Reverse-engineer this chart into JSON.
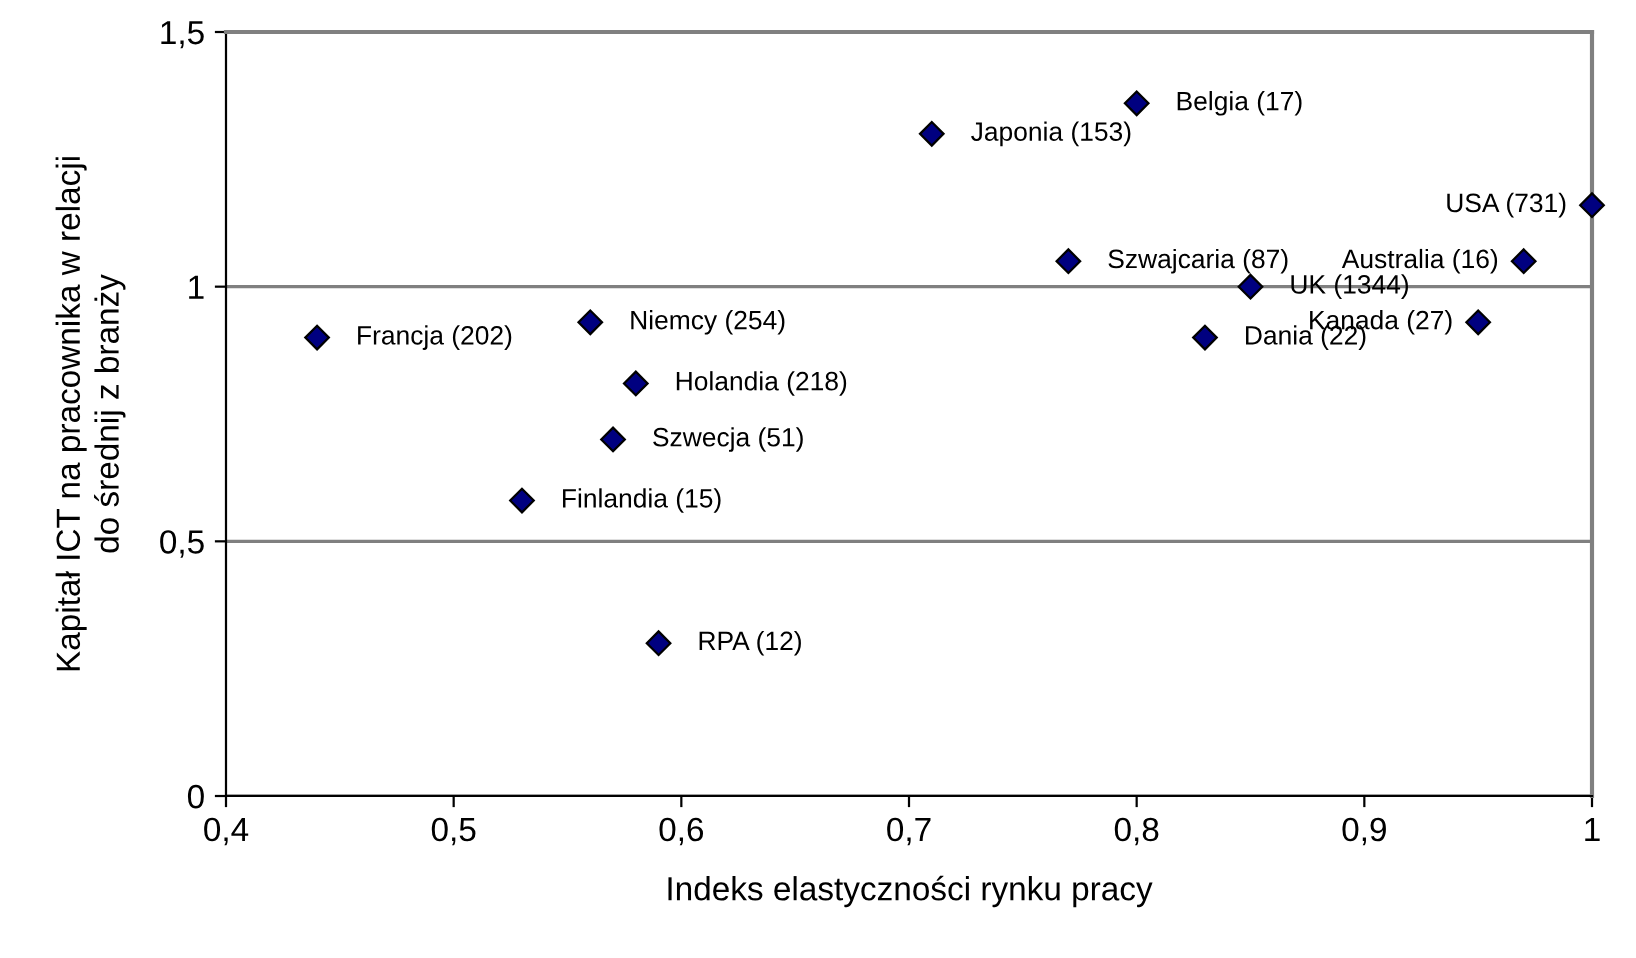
{
  "chart_data": {
    "type": "scatter",
    "xlabel": "Indeks elastyczności rynku pracy",
    "ylabel": "Kapitał ICT na pracownika w relacji\ndo średnij z branży",
    "x": [
      0.8,
      0.71,
      0.77,
      0.85,
      0.83,
      1.0,
      0.97,
      0.95,
      0.44,
      0.56,
      0.58,
      0.57,
      0.53,
      0.59
    ],
    "values": [
      1.36,
      1.3,
      1.05,
      1.0,
      0.9,
      1.16,
      1.05,
      0.93,
      0.9,
      0.93,
      0.81,
      0.7,
      0.58,
      0.3
    ],
    "color": "#000080",
    "marker": "diamond",
    "grid": "y",
    "xlim": [
      0.4,
      1.0
    ],
    "xticks": [
      {
        "value": 0.4,
        "label": "0,4"
      },
      {
        "value": 0.5,
        "label": "0,5"
      },
      {
        "value": 0.6,
        "label": "0,6"
      },
      {
        "value": 0.7,
        "label": "0,7"
      },
      {
        "value": 0.8,
        "label": "0,8"
      },
      {
        "value": 0.9,
        "label": "0,9"
      },
      1
    ],
    "ylim": [
      0,
      1.5
    ],
    "yticks": [
      0,
      {
        "value": 0.5,
        "label": "0,5"
      },
      1,
      {
        "value": 1.5,
        "label": "1,5"
      }
    ],
    "annotations": [
      {
        "text": "Belgia (17)",
        "x": 0.8,
        "y": 1.36
      },
      {
        "text": "Japonia (153)",
        "x": 0.71,
        "y": 1.3
      },
      {
        "text": "Szwajcaria (87)",
        "x": 0.77,
        "y": 1.05
      },
      {
        "text": "UK (1344)",
        "x": 0.85,
        "y": 1.0
      },
      {
        "text": "Dania (22)",
        "x": 0.83,
        "y": 0.9
      },
      {
        "text": "USA (731)",
        "x": 1.0,
        "y": 1.16
      },
      {
        "text": "Australia (16)",
        "x": 0.97,
        "y": 1.05
      },
      {
        "text": "Kanada (27)",
        "x": 0.95,
        "y": 0.93
      },
      {
        "text": "Francja (202)",
        "x": 0.44,
        "y": 0.9
      },
      {
        "text": "Niemcy (254)",
        "x": 0.56,
        "y": 0.93
      },
      {
        "text": "Holandia (218)",
        "x": 0.58,
        "y": 0.81
      },
      {
        "text": "Szwecja (51)",
        "x": 0.57,
        "y": 0.7
      },
      {
        "text": "Finlandia (15)",
        "x": 0.53,
        "y": 0.58
      },
      {
        "text": "RPA (12)",
        "x": 0.59,
        "y": 0.3
      }
    ]
  }
}
